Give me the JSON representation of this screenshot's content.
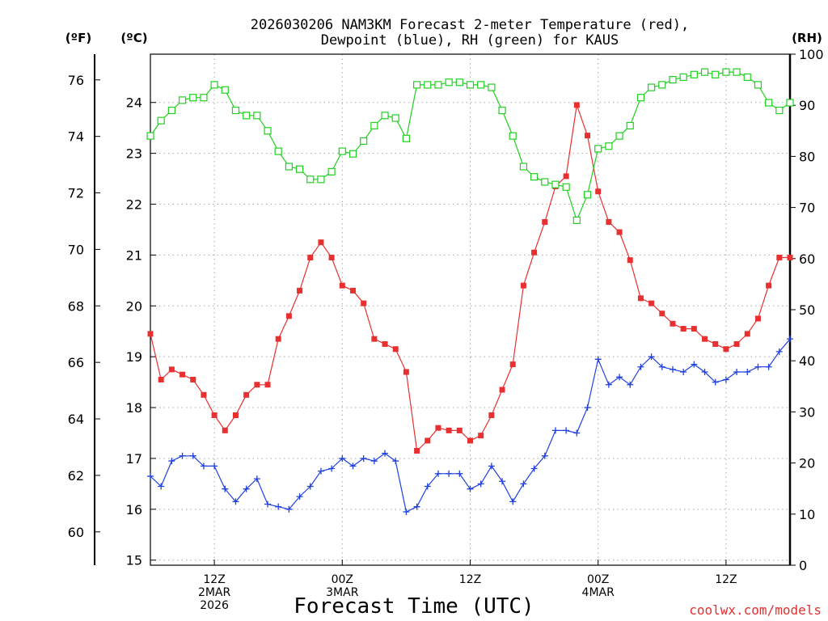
{
  "chart_data": {
    "type": "line",
    "title": [
      "2026030206 NAM3KM Forecast 2-meter Temperature (red),",
      "Dewpoint (blue), RH (green) for KAUS"
    ],
    "xlabel": "Forecast Time (UTC)",
    "credit": "coolwx.com/models",
    "units": {
      "fahrenheit": "(ºF)",
      "celsius": "(ºC)",
      "rh": "(RH)"
    },
    "x_range_hours": [
      0,
      60
    ],
    "x_ticks": [
      {
        "hour": 6,
        "lines": [
          "12Z",
          "2MAR",
          "2026"
        ]
      },
      {
        "hour": 18,
        "lines": [
          "00Z",
          "3MAR"
        ]
      },
      {
        "hour": 30,
        "lines": [
          "12Z"
        ]
      },
      {
        "hour": 42,
        "lines": [
          "00Z",
          "4MAR"
        ]
      },
      {
        "hour": 54,
        "lines": [
          "12Z"
        ]
      }
    ],
    "celsius_axis": {
      "range": [
        14.9,
        24.95
      ],
      "ticks": [
        "15",
        "16",
        "17",
        "18",
        "19",
        "20",
        "21",
        "22",
        "23",
        "24"
      ]
    },
    "fahrenheit_axis": {
      "ticks": [
        "60",
        "62",
        "64",
        "66",
        "68",
        "70",
        "72",
        "74",
        "76"
      ]
    },
    "rh_axis": {
      "range": [
        0,
        100
      ],
      "ticks": [
        "0",
        "10",
        "20",
        "30",
        "40",
        "50",
        "60",
        "70",
        "80",
        "90",
        "100"
      ]
    },
    "series": [
      {
        "name": "Temperature",
        "unit": "C",
        "color": "#e83030",
        "marker": "filled-square",
        "values": [
          19.45,
          18.55,
          18.75,
          18.65,
          18.55,
          18.25,
          17.85,
          17.55,
          17.85,
          18.25,
          18.45,
          18.45,
          19.35,
          19.8,
          20.3,
          20.95,
          21.25,
          20.95,
          20.4,
          20.3,
          20.05,
          19.35,
          19.25,
          19.15,
          18.7,
          17.15,
          17.35,
          17.6,
          17.55,
          17.55,
          17.35,
          17.45,
          17.85,
          18.35,
          18.85,
          20.4,
          21.05,
          21.65,
          22.35,
          22.55,
          23.95,
          23.35,
          22.25,
          21.65,
          21.45,
          20.9,
          20.15,
          20.05,
          19.85,
          19.65,
          19.55,
          19.55,
          19.35,
          19.25,
          19.15,
          19.25,
          19.45,
          19.75,
          20.4,
          20.95,
          20.95
        ]
      },
      {
        "name": "Dewpoint",
        "unit": "C",
        "color": "#2040e0",
        "marker": "plus",
        "values": [
          16.65,
          16.45,
          16.95,
          17.05,
          17.05,
          16.85,
          16.85,
          16.4,
          16.15,
          16.4,
          16.6,
          16.1,
          16.05,
          16.0,
          16.25,
          16.45,
          16.75,
          16.8,
          17.0,
          16.85,
          17.0,
          16.95,
          17.1,
          16.95,
          15.95,
          16.05,
          16.45,
          16.7,
          16.7,
          16.7,
          16.4,
          16.5,
          16.85,
          16.55,
          16.15,
          16.5,
          16.8,
          17.05,
          17.55,
          17.55,
          17.5,
          18.0,
          18.95,
          18.45,
          18.6,
          18.45,
          18.8,
          19.0,
          18.8,
          18.75,
          18.7,
          18.85,
          18.7,
          18.5,
          18.55,
          18.7,
          18.7,
          18.8,
          18.8,
          19.1,
          19.35
        ]
      },
      {
        "name": "RH",
        "unit": "%",
        "color": "#20d020",
        "marker": "open-square",
        "values": [
          84,
          87,
          89,
          91,
          91.5,
          91.5,
          94,
          93,
          89,
          88,
          88,
          85,
          81,
          78,
          77.5,
          75.5,
          75.5,
          77,
          81,
          80.5,
          83,
          86,
          88,
          87.5,
          83.5,
          94,
          94,
          94,
          94.5,
          94.5,
          94,
          94,
          93.5,
          89,
          84,
          78,
          76,
          75,
          74.5,
          74,
          67.5,
          72.5,
          81.5,
          82,
          84,
          86,
          91.5,
          93.5,
          94,
          95,
          95.5,
          96,
          96.5,
          96,
          96.5,
          96.5,
          95.5,
          94,
          90.5,
          89,
          90.5
        ]
      }
    ]
  }
}
